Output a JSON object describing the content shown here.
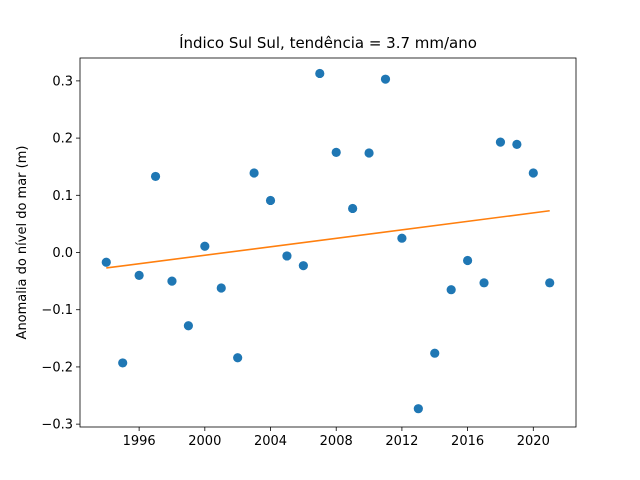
{
  "chart_data": {
    "type": "scatter",
    "title": "Índico Sul Sul, tendência = 3.7 mm/ano",
    "xlabel": "",
    "ylabel": "Anomalia do nível do mar (m)",
    "xlim": [
      1992.4,
      2022.6
    ],
    "ylim": [
      -0.305,
      0.34
    ],
    "x_ticks": [
      1996,
      2000,
      2004,
      2008,
      2012,
      2016,
      2020
    ],
    "y_ticks": [
      -0.3,
      -0.2,
      -0.1,
      0.0,
      0.1,
      0.2,
      0.3
    ],
    "y_tick_labels": [
      "−0.3",
      "−0.2",
      "−0.1",
      "0.0",
      "0.1",
      "0.2",
      "0.3"
    ],
    "grid": false,
    "series": [
      {
        "type": "scatter",
        "color": "#1f77b4",
        "x": [
          1994,
          1995,
          1996,
          1997,
          1998,
          1999,
          2000,
          2001,
          2002,
          2003,
          2004,
          2005,
          2006,
          2007,
          2008,
          2009,
          2010,
          2011,
          2012,
          2013,
          2014,
          2015,
          2016,
          2017,
          2018,
          2019,
          2020,
          2021
        ],
        "y": [
          -0.017,
          -0.193,
          -0.04,
          0.133,
          -0.05,
          -0.128,
          0.011,
          -0.062,
          -0.184,
          0.139,
          0.091,
          -0.006,
          -0.023,
          0.313,
          0.175,
          0.077,
          0.174,
          0.303,
          0.025,
          -0.273,
          -0.176,
          -0.065,
          -0.014,
          -0.053,
          0.193,
          0.189,
          0.139,
          -0.053
        ]
      },
      {
        "type": "line",
        "color": "#ff7f0e",
        "x": [
          1994,
          2021
        ],
        "y": [
          -0.027,
          0.073
        ]
      }
    ]
  }
}
